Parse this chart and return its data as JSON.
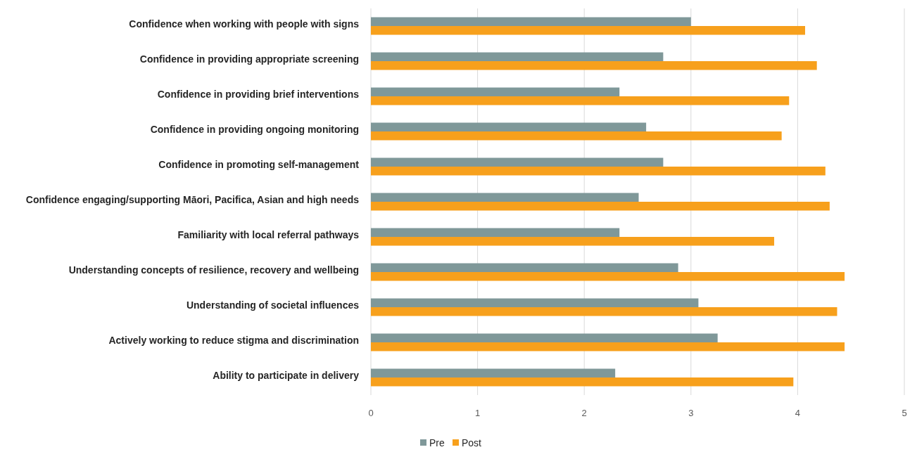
{
  "chart_data": {
    "type": "bar",
    "orientation": "horizontal",
    "categories": [
      "Confidence when working with people with signs",
      "Confidence in providing appropriate screening",
      "Confidence in providing brief interventions",
      "Confidence in providing ongoing monitoring",
      "Confidence in promoting self-management",
      "Confidence engaging/supporting Māori, Pacifica, Asian and high needs",
      "Familiarity with local referral pathways",
      "Understanding concepts of resilience, recovery and wellbeing",
      "Understanding of societal influences",
      "Actively working to reduce stigma and discrimination",
      "Ability to participate in delivery"
    ],
    "series": [
      {
        "name": "Pre",
        "color": "#7f9899",
        "values": [
          3.0,
          2.74,
          2.33,
          2.58,
          2.74,
          2.51,
          2.33,
          2.88,
          3.07,
          3.25,
          2.29
        ]
      },
      {
        "name": "Post",
        "color": "#f7a01c",
        "values": [
          4.07,
          4.18,
          3.92,
          3.85,
          4.26,
          4.3,
          3.78,
          4.44,
          4.37,
          4.44,
          3.96
        ]
      }
    ],
    "xlim": [
      0,
      5
    ],
    "xticks": [
      0,
      1,
      2,
      3,
      4,
      5
    ],
    "grid": "x",
    "legend": "bottom"
  }
}
